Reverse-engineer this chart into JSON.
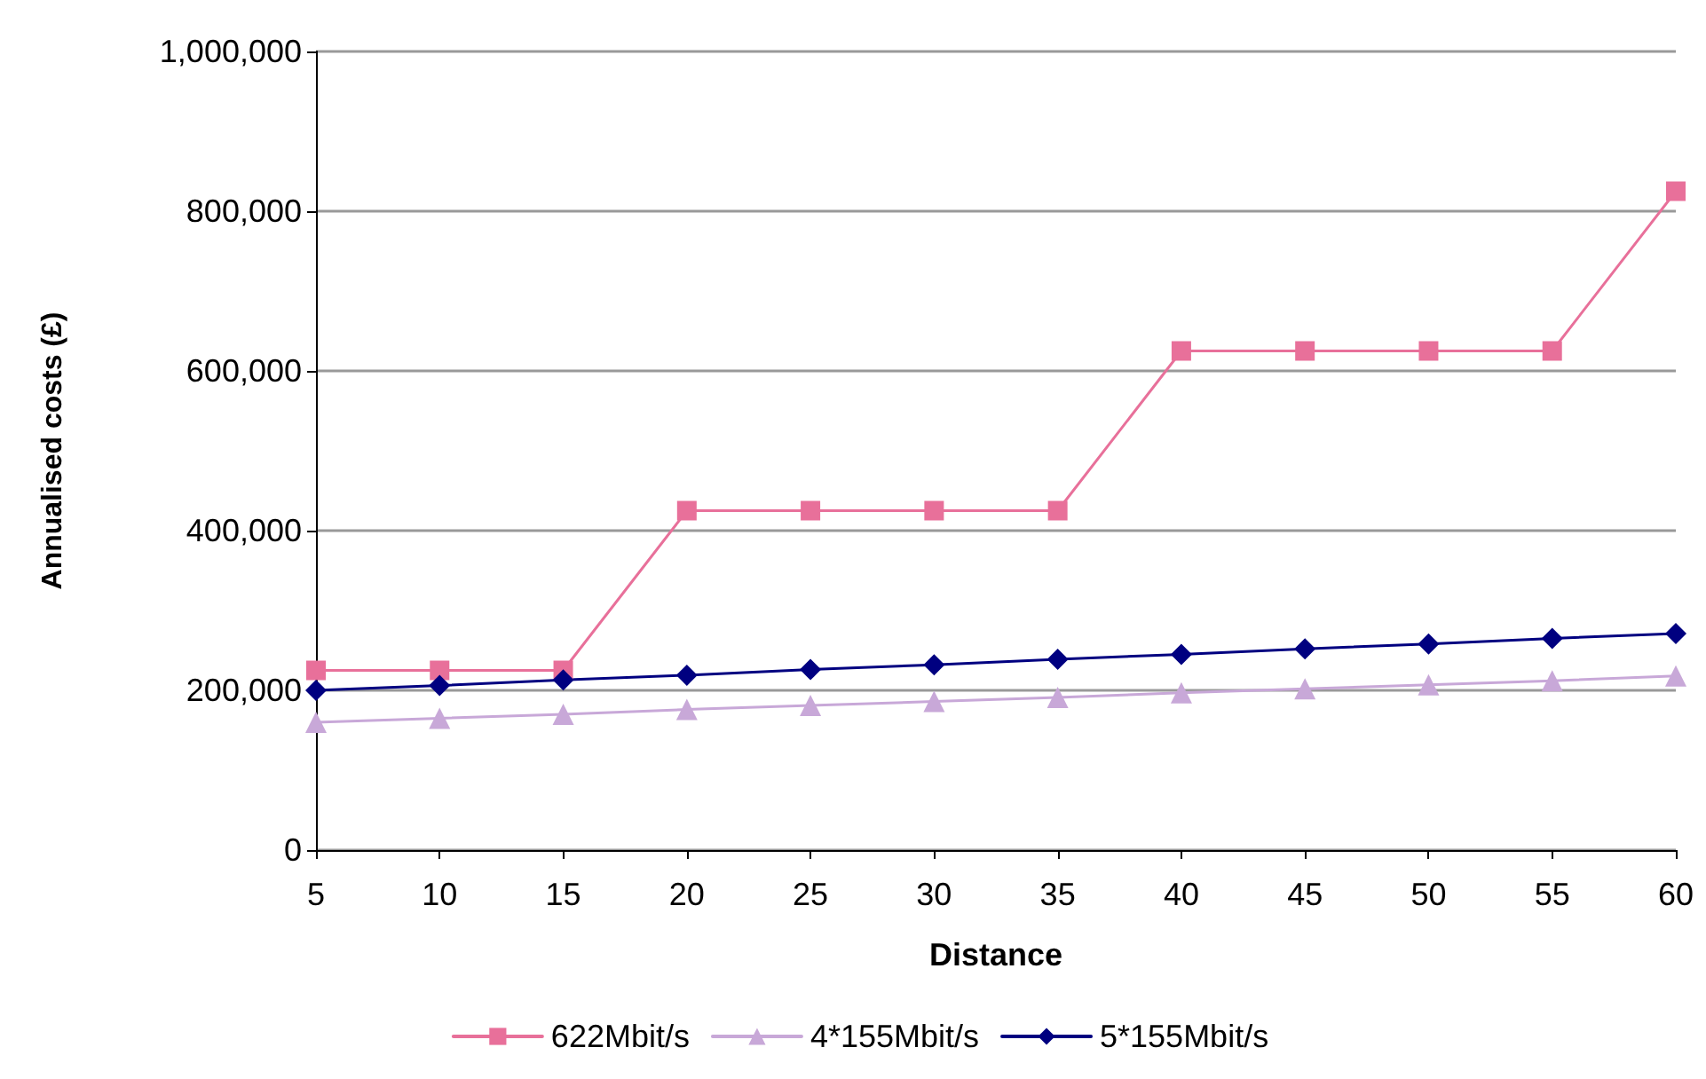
{
  "chart_data": {
    "type": "line",
    "xlabel": "Distance",
    "ylabel": "Annualised costs (£)",
    "categories": [
      "5",
      "10",
      "15",
      "20",
      "25",
      "30",
      "35",
      "40",
      "45",
      "50",
      "55",
      "60"
    ],
    "series": [
      {
        "name": "622Mbit/s",
        "color": "#e8709a",
        "marker": "square",
        "values": [
          225000,
          225000,
          225000,
          425000,
          425000,
          425000,
          425000,
          625000,
          625000,
          625000,
          625000,
          825000
        ]
      },
      {
        "name": "4*155Mbit/s",
        "color": "#c8a8d8",
        "marker": "triangle",
        "values": [
          160000,
          165000,
          170000,
          176000,
          181000,
          186000,
          191000,
          197000,
          202000,
          207000,
          212000,
          218000
        ]
      },
      {
        "name": "5*155Mbit/s",
        "color": "#000080",
        "marker": "diamond",
        "values": [
          200000,
          206000,
          213000,
          219000,
          226000,
          232000,
          239000,
          245000,
          252000,
          258000,
          265000,
          271000
        ]
      }
    ],
    "ylim": [
      0,
      1000000
    ],
    "yticks": [
      {
        "value": 0,
        "label": "0"
      },
      {
        "value": 200000,
        "label": "200,000"
      },
      {
        "value": 400000,
        "label": "400,000"
      },
      {
        "value": 600000,
        "label": "600,000"
      },
      {
        "value": 800000,
        "label": "800,000"
      },
      {
        "value": 1000000,
        "label": "1,000,000"
      }
    ],
    "grid": "y",
    "legend": "bottom",
    "line_style": "solid"
  }
}
